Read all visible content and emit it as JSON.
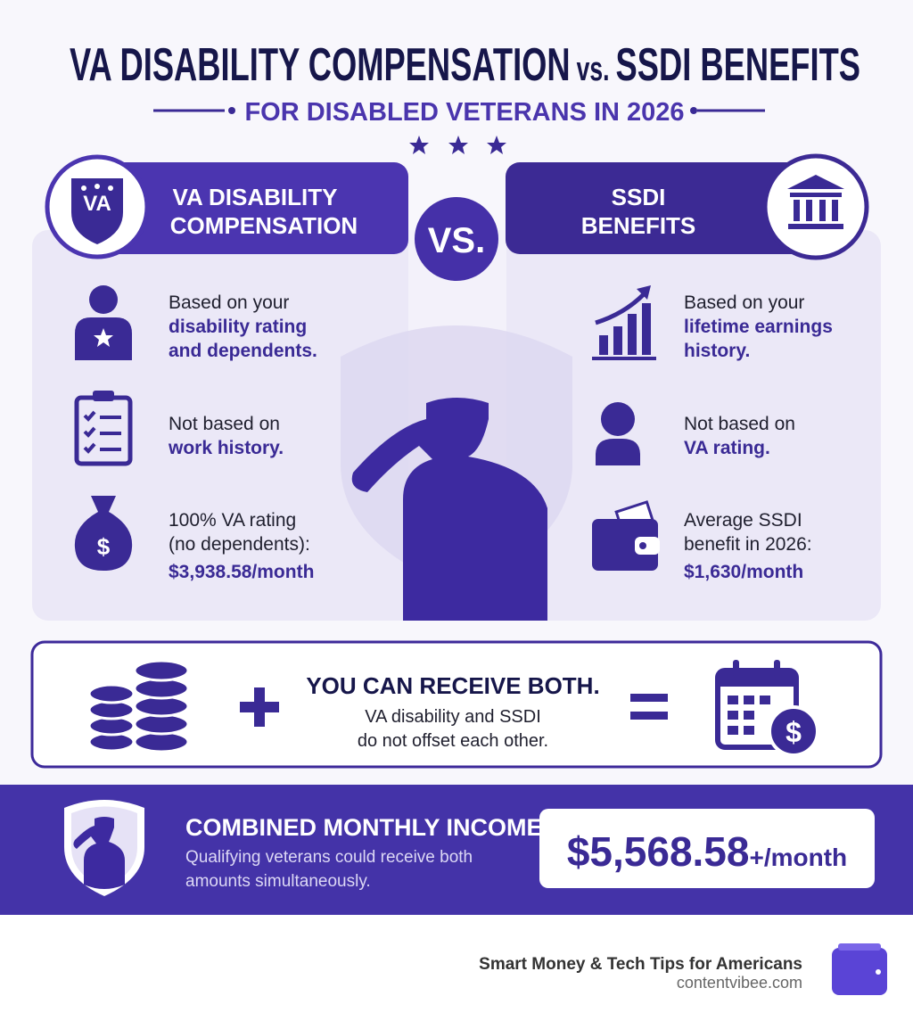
{
  "header": {
    "title": "VA DISABILITY COMPENSATION",
    "title_vs": "vs.",
    "title_end": "SSDI BENEFITS",
    "subtitle": "FOR DISABLED VETERANS IN 2026"
  },
  "vs_label": "VS.",
  "left": {
    "badge": "VA",
    "heading": [
      "VA DISABILITY",
      "COMPENSATION"
    ],
    "items": [
      {
        "text": [
          "Based on your"
        ],
        "emphasis": [
          "disability rating",
          "and dependents."
        ]
      },
      {
        "text": [
          "Not based on"
        ],
        "emphasis": [
          "work history."
        ]
      },
      {
        "text": [
          "100% VA rating",
          "(no dependents):"
        ],
        "emphasis": [
          "$3,938.58/month"
        ]
      }
    ]
  },
  "right": {
    "heading": [
      "SSDI",
      "BENEFITS"
    ],
    "items": [
      {
        "text": [
          "Based on your"
        ],
        "emphasis": [
          "lifetime earnings",
          "history."
        ]
      },
      {
        "text": [
          "Not based on"
        ],
        "emphasis": [
          "VA rating."
        ]
      },
      {
        "text": [
          "Average SSDI",
          "benefit in 2026:"
        ],
        "emphasis": [
          "$1,630/month"
        ]
      }
    ]
  },
  "both": {
    "title": "YOU CAN RECEIVE BOTH.",
    "text": [
      "VA disability and SSDI",
      "do not offset each other."
    ]
  },
  "combined": {
    "title": "COMBINED MONTHLY INCOME",
    "text": [
      "Qualifying veterans could receive both",
      "amounts simultaneously."
    ],
    "amount": "$5,568.58",
    "amount_suffix": "+/month"
  },
  "footer": {
    "tagline": "Smart Money & Tech Tips for Americans",
    "site": "contentvibee.com"
  }
}
